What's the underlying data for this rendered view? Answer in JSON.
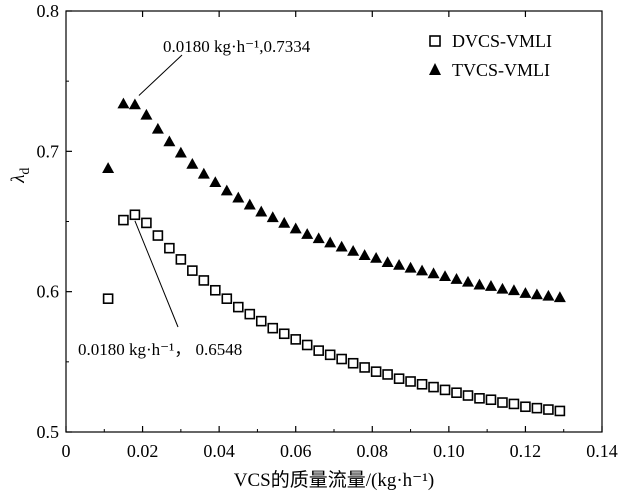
{
  "chart_data": {
    "type": "scatter",
    "xlabel": "VCS的质量流量/(kg·h⁻¹)",
    "ylabel": "λ",
    "ylabel_subscript": "d",
    "xlim": [
      0,
      0.14
    ],
    "ylim": [
      0.5,
      0.8
    ],
    "xticks": [
      "0",
      "0.02",
      "0.04",
      "0.06",
      "0.08",
      "0.10",
      "0.12",
      "0.14"
    ],
    "yticks": [
      "0.5",
      "0.6",
      "0.7",
      "0.8"
    ],
    "grid": false,
    "legend_position": "top-right",
    "series": [
      {
        "name": "DVCS-VMLI",
        "marker": "open-square",
        "x": [
          0.011,
          0.015,
          0.018,
          0.021,
          0.024,
          0.027,
          0.03,
          0.033,
          0.036,
          0.039,
          0.042,
          0.045,
          0.048,
          0.051,
          0.054,
          0.057,
          0.06,
          0.063,
          0.066,
          0.069,
          0.072,
          0.075,
          0.078,
          0.081,
          0.084,
          0.087,
          0.09,
          0.093,
          0.096,
          0.099,
          0.102,
          0.105,
          0.108,
          0.111,
          0.114,
          0.117,
          0.12,
          0.123,
          0.126,
          0.129
        ],
        "y": [
          0.595,
          0.651,
          0.6548,
          0.649,
          0.64,
          0.631,
          0.623,
          0.615,
          0.608,
          0.601,
          0.595,
          0.589,
          0.584,
          0.579,
          0.574,
          0.57,
          0.566,
          0.562,
          0.558,
          0.555,
          0.552,
          0.549,
          0.546,
          0.543,
          0.541,
          0.538,
          0.536,
          0.534,
          0.532,
          0.53,
          0.528,
          0.526,
          0.524,
          0.523,
          0.521,
          0.52,
          0.518,
          0.517,
          0.516,
          0.515
        ]
      },
      {
        "name": "TVCS-VMLI",
        "marker": "filled-triangle",
        "x": [
          0.011,
          0.015,
          0.018,
          0.021,
          0.024,
          0.027,
          0.03,
          0.033,
          0.036,
          0.039,
          0.042,
          0.045,
          0.048,
          0.051,
          0.054,
          0.057,
          0.06,
          0.063,
          0.066,
          0.069,
          0.072,
          0.075,
          0.078,
          0.081,
          0.084,
          0.087,
          0.09,
          0.093,
          0.096,
          0.099,
          0.102,
          0.105,
          0.108,
          0.111,
          0.114,
          0.117,
          0.12,
          0.123,
          0.126,
          0.129
        ],
        "y": [
          0.688,
          0.734,
          0.7334,
          0.726,
          0.716,
          0.707,
          0.699,
          0.691,
          0.684,
          0.678,
          0.672,
          0.667,
          0.662,
          0.657,
          0.653,
          0.649,
          0.645,
          0.641,
          0.638,
          0.635,
          0.632,
          0.629,
          0.626,
          0.624,
          0.621,
          0.619,
          0.617,
          0.615,
          0.613,
          0.611,
          0.609,
          0.607,
          0.605,
          0.604,
          0.602,
          0.601,
          0.599,
          0.598,
          0.597,
          0.596
        ]
      }
    ],
    "annotations": [
      {
        "text": "0.0180 kg·h⁻¹,0.7334",
        "x": 0.018,
        "y": 0.7334
      },
      {
        "text": "0.0180 kg·h⁻¹， 0.6548",
        "x": 0.018,
        "y": 0.6548
      }
    ]
  }
}
